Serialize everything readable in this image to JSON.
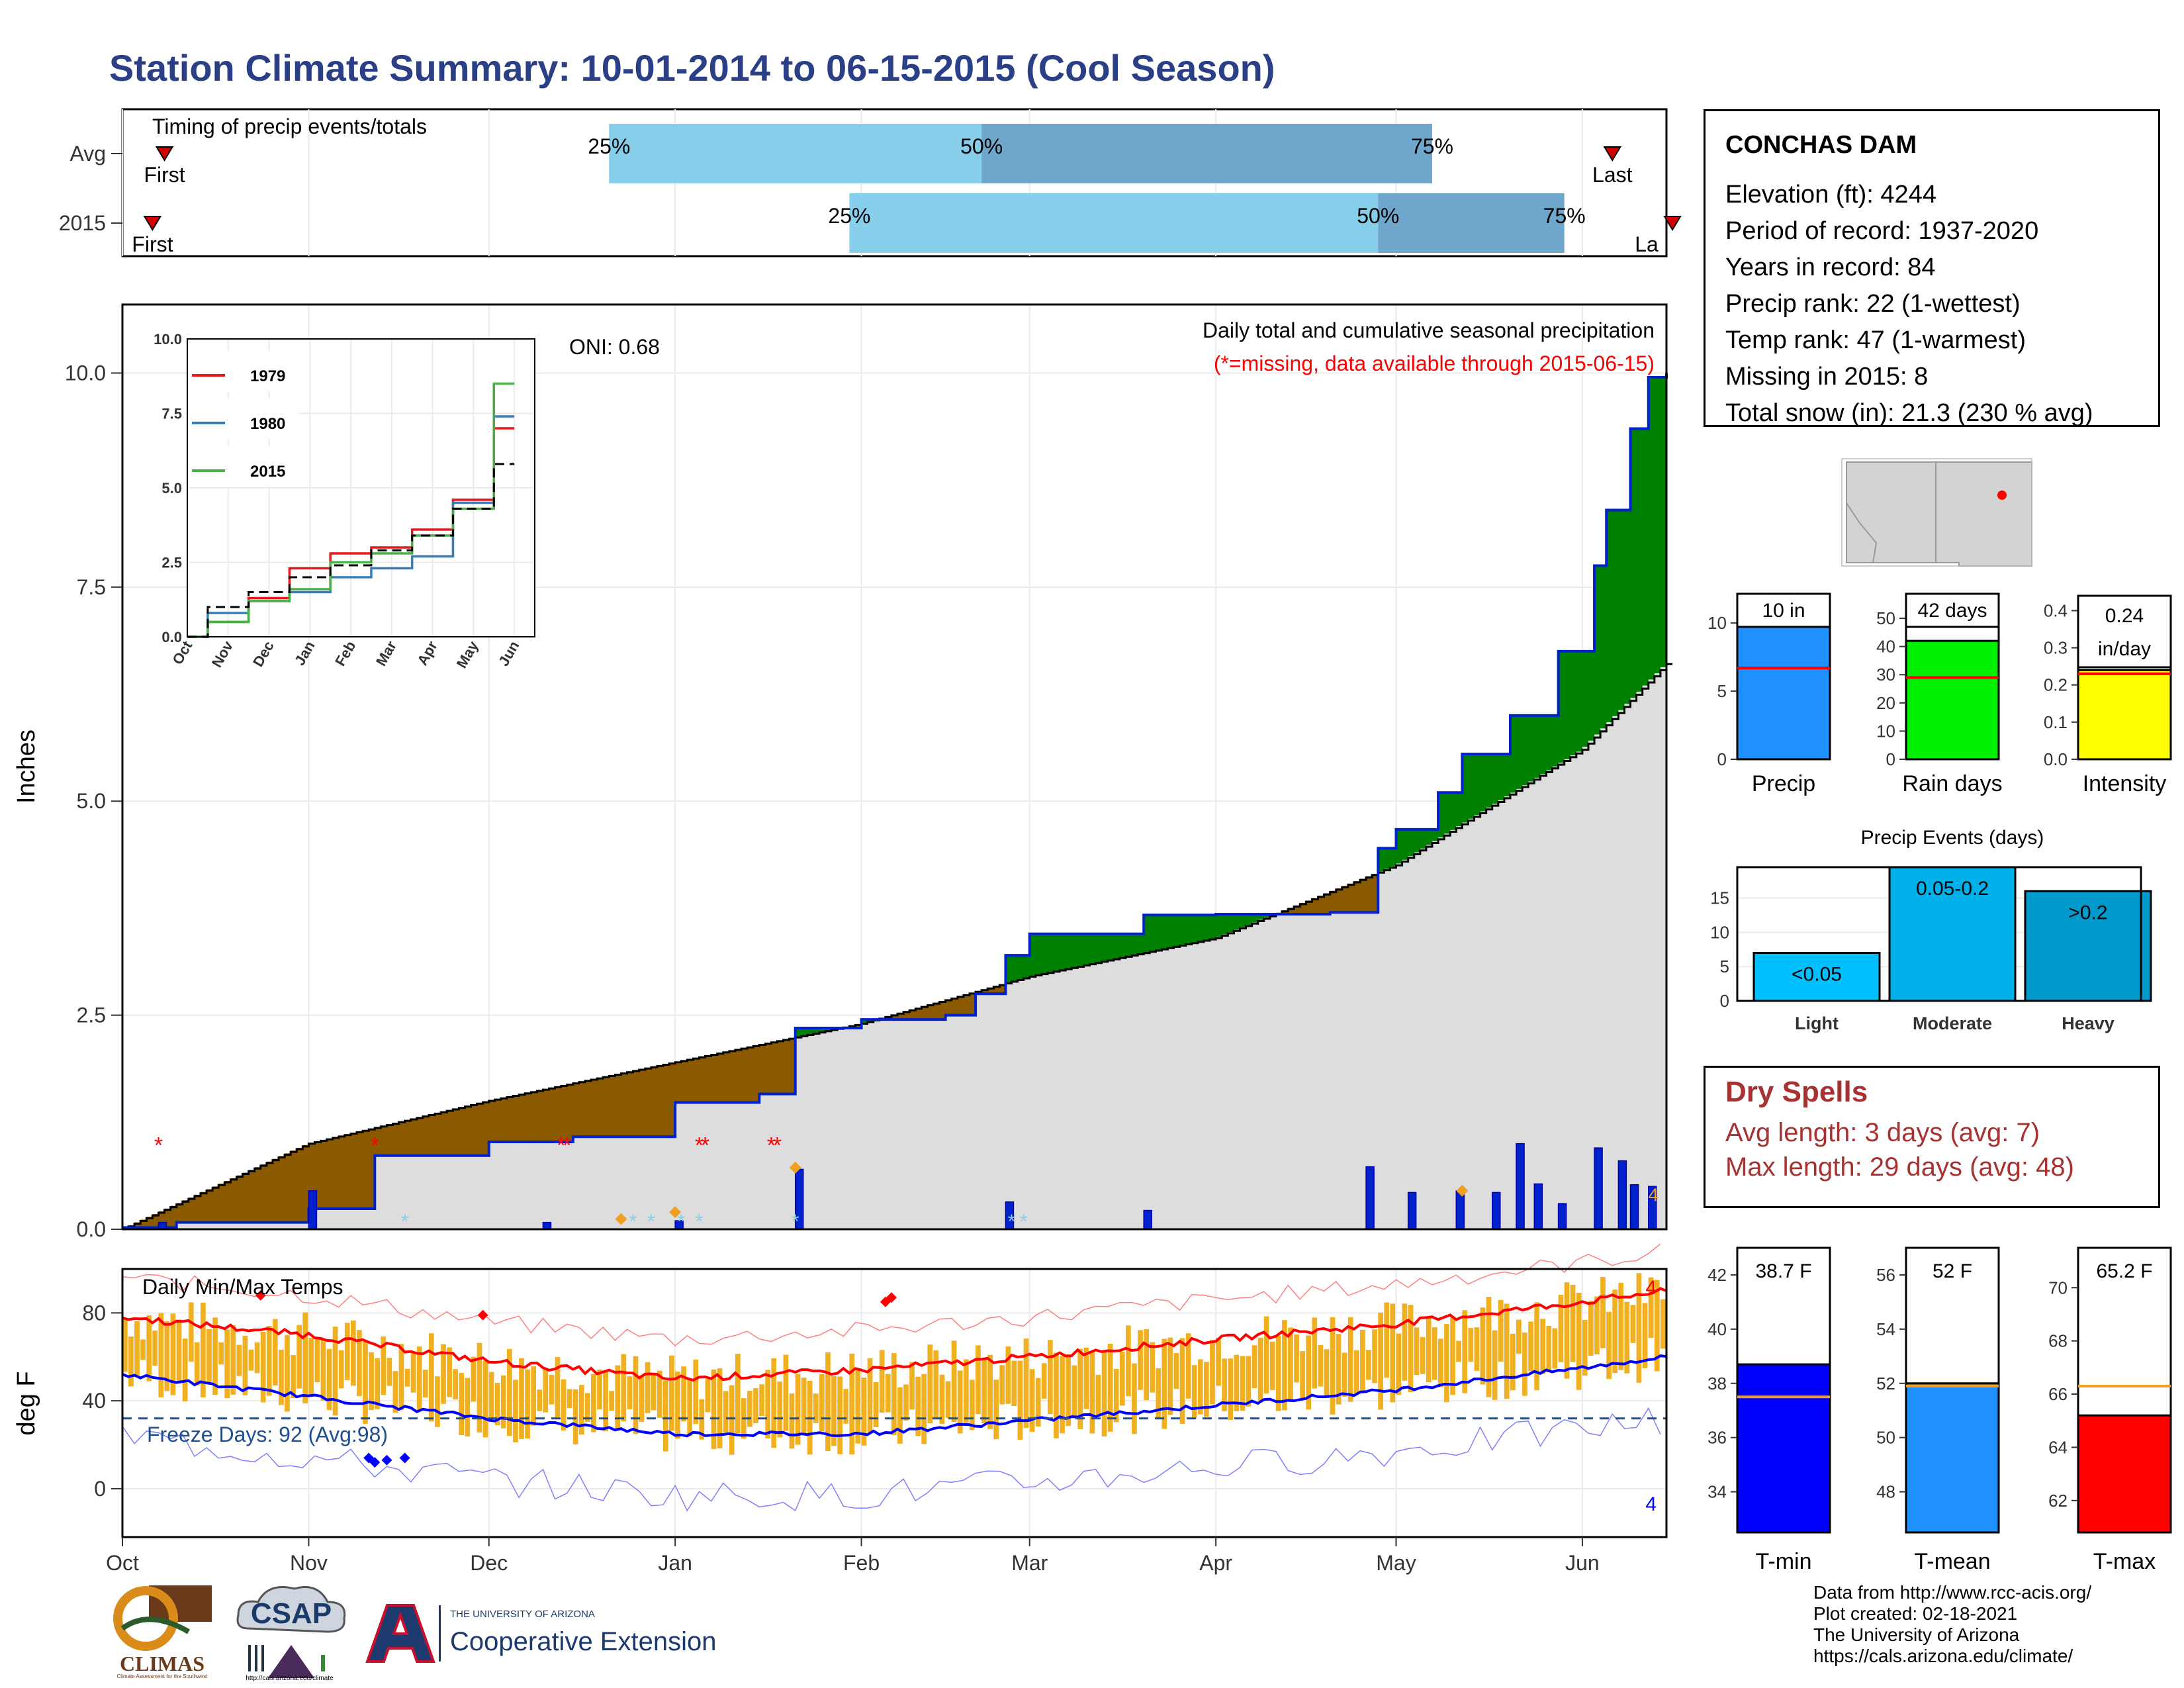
{
  "title": "Station Climate Summary: 10-01-2014 to 06-15-2015 (Cool Season)",
  "colors": {
    "title": "#2b3f87",
    "precip_2015": "#0022cc",
    "above_avg": "#008000",
    "below_avg": "#8b5a00",
    "avg_fill": "#dddddd",
    "tmax_line": "#ff0000",
    "tmin_line": "#0000ff",
    "range_bar": "#f0b020",
    "timing_light": "#87ceeb",
    "timing_dark": "#6ea6cc"
  },
  "timing": {
    "label": "Timing of precip events/totals",
    "rows": [
      {
        "name": "Avg",
        "first_label": "First",
        "last_label": "Last",
        "first": "2014-10-08",
        "q25": "2014-12-21",
        "q50": "2015-02-21",
        "q75": "2015-05-07",
        "last": "2015-06-06"
      },
      {
        "name": "2015",
        "first_label": "First",
        "last_label": "La",
        "first": "2014-10-06",
        "q25": "2015-01-30",
        "q50": "2015-04-28",
        "q75": "2015-05-29",
        "last": "2015-06-16"
      }
    ],
    "pct_labels": [
      "25%",
      "50%",
      "75%"
    ]
  },
  "precip_chart": {
    "ylabel": "Inches",
    "annotation_title": "Daily total and cumulative seasonal precipitation",
    "annotation_missing": "(*=missing, data available through 2015-06-15)",
    "oni": "ONI: 0.68",
    "y_ticks": [
      "0.0",
      "2.5",
      "5.0",
      "7.5",
      "10.0"
    ],
    "right_edge_count": "4",
    "inset": {
      "y_ticks": [
        "0.0",
        "2.5",
        "5.0",
        "7.5",
        "10.0"
      ],
      "x_ticks": [
        "Oct",
        "Nov",
        "Dec",
        "Jan",
        "Feb",
        "Mar",
        "Apr",
        "May",
        "Jun"
      ],
      "legend": [
        {
          "name": "1979",
          "color": "#e41a1c"
        },
        {
          "name": "1980",
          "color": "#377eb8"
        },
        {
          "name": "2015",
          "color": "#4daf4a"
        }
      ]
    }
  },
  "temp_chart": {
    "ylabel": "deg F",
    "label": "Daily Min/Max Temps",
    "freeze": "Freeze Days: 92 (Avg:98)",
    "y_ticks": [
      "0",
      "40",
      "80"
    ],
    "count_top": "4",
    "count_bottom": "4"
  },
  "x_axis": {
    "ticks": [
      "Oct",
      "Nov",
      "Dec",
      "Jan",
      "Feb",
      "Mar",
      "Apr",
      "May",
      "Jun"
    ]
  },
  "station": {
    "name": "CONCHAS DAM",
    "lines": [
      "Elevation (ft): 4244",
      "Period of record: 1937-2020",
      "Years in record: 84",
      "Precip rank: 22 (1-wettest)",
      "Temp rank: 47 (1-warmest)",
      "Missing in 2015: 8",
      "Total snow (in): 21.3 (230 % avg)"
    ]
  },
  "summary_bars": {
    "precip": {
      "label": "Precip",
      "value_label": "10 in",
      "ticks": [
        "0",
        "5",
        "10"
      ],
      "color": "#1e90ff"
    },
    "rain_days": {
      "label": "Rain days",
      "value_label": "42 days",
      "ticks": [
        "0",
        "10",
        "20",
        "30",
        "40",
        "50"
      ],
      "color": "#00ee00"
    },
    "intensity": {
      "label": "Intensity",
      "value_label_1": "0.24",
      "value_label_2": "in/day",
      "ticks": [
        "0.0",
        "0.1",
        "0.2",
        "0.3",
        "0.4"
      ],
      "color": "#ffff00"
    }
  },
  "precip_events": {
    "title": "Precip Events (days)",
    "ticks": [
      "0",
      "5",
      "10",
      "15"
    ],
    "bars": [
      {
        "name": "Light",
        "range": "<0.05",
        "value": 7,
        "color": "#00bfff"
      },
      {
        "name": "Moderate",
        "range": "0.05-0.2",
        "value": 19.5,
        "color": "#00b0e8"
      },
      {
        "name": "Heavy",
        "range": ">0.2",
        "value": 16,
        "color": "#009acd"
      }
    ]
  },
  "dry_spells": {
    "title": "Dry Spells",
    "avg": "Avg length: 3 days (avg: 7)",
    "max": "Max length: 29 days (avg: 48)"
  },
  "temp_bars": [
    {
      "name": "T-min",
      "value_label": "38.7 F",
      "ticks": [
        "34",
        "36",
        "38",
        "40",
        "42"
      ],
      "color": "#0000ff"
    },
    {
      "name": "T-mean",
      "value_label": "52 F",
      "ticks": [
        "48",
        "50",
        "52",
        "54",
        "56"
      ],
      "color": "#1e90ff"
    },
    {
      "name": "T-max",
      "value_label": "65.2 F",
      "ticks": [
        "62",
        "64",
        "66",
        "68",
        "70"
      ],
      "color": "#ff0000"
    }
  ],
  "credits": [
    "Data from http://www.rcc-acis.org/",
    "Plot created: 02-18-2021",
    "The University of Arizona",
    "https://cals.arizona.edu/climate/"
  ],
  "logos": {
    "climas": "CLIMAS",
    "climas_sub": "Climate Assessment for the Southwest",
    "csap": "CSAP",
    "csap_url": "http://cals.arizona.edu/climate",
    "ua_top": "THE UNIVERSITY OF ARIZONA",
    "ua_bottom": "Cooperative Extension"
  },
  "chart_data": [
    {
      "type": "area",
      "title": "Daily total and cumulative seasonal precipitation",
      "ylabel": "Inches",
      "ylim": [
        0,
        10.8
      ],
      "x_range": [
        "2014-10-01",
        "2015-06-15"
      ],
      "series": [
        {
          "name": "2015",
          "x": [
            "2014-10-01",
            "2014-10-10",
            "2014-11-01",
            "2014-11-12",
            "2014-12-01",
            "2014-12-15",
            "2015-01-01",
            "2015-01-15",
            "2015-01-21",
            "2015-02-01",
            "2015-02-15",
            "2015-02-20",
            "2015-02-25",
            "2015-03-01",
            "2015-03-20",
            "2015-04-01",
            "2015-04-20",
            "2015-04-28",
            "2015-05-01",
            "2015-05-08",
            "2015-05-12",
            "2015-05-20",
            "2015-05-28",
            "2015-06-03",
            "2015-06-05",
            "2015-06-09",
            "2015-06-12",
            "2015-06-15"
          ],
          "y": [
            0.02,
            0.08,
            0.24,
            0.86,
            1.02,
            1.08,
            1.48,
            1.58,
            2.35,
            2.45,
            2.5,
            2.75,
            3.2,
            3.45,
            3.67,
            3.68,
            3.7,
            4.45,
            4.67,
            5.1,
            5.55,
            6.0,
            6.75,
            7.75,
            8.4,
            9.35,
            9.95,
            10.0
          ]
        },
        {
          "name": "Average",
          "x": [
            "2014-10-01",
            "2014-11-01",
            "2014-12-01",
            "2015-01-01",
            "2015-02-01",
            "2015-03-01",
            "2015-04-01",
            "2015-05-01",
            "2015-06-01",
            "2015-06-15"
          ],
          "y": [
            0.0,
            1.0,
            1.5,
            1.95,
            2.4,
            2.95,
            3.4,
            4.25,
            5.6,
            6.6
          ]
        }
      ],
      "daily_precip_2015": {
        "x": [
          "2014-10-07",
          "2014-11-01",
          "2014-12-10",
          "2015-01-01",
          "2015-01-21",
          "2015-02-25",
          "2015-03-20",
          "2015-04-26",
          "2015-05-03",
          "2015-05-11",
          "2015-05-17",
          "2015-05-21",
          "2015-05-24",
          "2015-05-28",
          "2015-06-03",
          "2015-06-07",
          "2015-06-09",
          "2015-06-12"
        ],
        "y": [
          0.08,
          0.45,
          0.08,
          0.1,
          0.7,
          0.32,
          0.22,
          0.73,
          0.43,
          0.45,
          0.43,
          1.0,
          0.53,
          0.3,
          0.95,
          0.8,
          0.52,
          0.5
        ]
      }
    },
    {
      "type": "line",
      "title": "Daily Min/Max Temps",
      "ylabel": "deg F",
      "ylim": [
        -22,
        100
      ],
      "series": [
        {
          "name": "Avg Tmax",
          "x": [
            "2014-10-01",
            "2014-11-01",
            "2014-12-01",
            "2015-01-01",
            "2015-02-01",
            "2015-03-01",
            "2015-04-01",
            "2015-05-01",
            "2015-06-01",
            "2015-06-15"
          ],
          "y": [
            78,
            70,
            58,
            50,
            54,
            60,
            68,
            75,
            85,
            90
          ]
        },
        {
          "name": "Avg Tmin",
          "x": [
            "2014-10-01",
            "2014-11-01",
            "2014-12-01",
            "2015-01-01",
            "2015-02-01",
            "2015-03-01",
            "2015-04-01",
            "2015-05-01",
            "2015-06-01",
            "2015-06-15"
          ],
          "y": [
            52,
            42,
            32,
            25,
            25,
            31,
            38,
            45,
            55,
            60
          ]
        },
        {
          "name": "Freeze line",
          "x": [
            "2014-10-01",
            "2015-06-15"
          ],
          "y": [
            32,
            32
          ]
        }
      ]
    },
    {
      "type": "line",
      "title": "",
      "x_ticks": [
        "Oct",
        "Nov",
        "Dec",
        "Jan",
        "Feb",
        "Mar",
        "Apr",
        "May",
        "Jun"
      ],
      "ylim": [
        0,
        10
      ],
      "series": [
        {
          "name": "1979",
          "x": [
            "Oct",
            "Nov",
            "Dec",
            "Jan",
            "Feb",
            "Mar",
            "Apr",
            "May",
            "Jun"
          ],
          "y": [
            0.0,
            0.5,
            1.3,
            2.3,
            2.8,
            3.0,
            3.6,
            4.6,
            7.0
          ]
        },
        {
          "name": "1980",
          "x": [
            "Oct",
            "Nov",
            "Dec",
            "Jan",
            "Feb",
            "Mar",
            "Apr",
            "May",
            "Jun"
          ],
          "y": [
            0.0,
            0.8,
            1.2,
            1.5,
            2.0,
            2.3,
            2.7,
            4.5,
            7.4
          ]
        },
        {
          "name": "2015",
          "x": [
            "Oct",
            "Nov",
            "Dec",
            "Jan",
            "Feb",
            "Mar",
            "Apr",
            "May",
            "Jun"
          ],
          "y": [
            0.0,
            0.5,
            1.2,
            1.6,
            2.5,
            2.8,
            3.4,
            4.3,
            8.5
          ]
        },
        {
          "name": "Average",
          "x": [
            "Oct",
            "Nov",
            "Dec",
            "Jan",
            "Feb",
            "Mar",
            "Apr",
            "May",
            "Jun"
          ],
          "y": [
            0.0,
            1.0,
            1.5,
            2.0,
            2.4,
            2.9,
            3.4,
            4.3,
            5.8
          ]
        }
      ]
    },
    {
      "type": "bar",
      "title": "",
      "categories": [
        "Precip",
        "Rain days",
        "Intensity"
      ],
      "series": [
        {
          "name": "",
          "values": [
            10,
            42,
            0.24
          ]
        },
        {
          "name": "",
          "values": [
            6.7,
            29,
            0.23
          ]
        }
      ]
    },
    {
      "type": "bar",
      "title": "Precip Events (days)",
      "categories": [
        "Light",
        "Moderate",
        "Heavy"
      ],
      "values": [
        7,
        19.5,
        16
      ],
      "ylim": [
        0,
        19.5
      ]
    },
    {
      "type": "bar",
      "title": "",
      "categories": [
        "T-min",
        "T-mean",
        "T-max"
      ],
      "series": [
        {
          "name": "",
          "values": [
            38.7,
            52,
            65.2
          ]
        },
        {
          "name": "",
          "values": [
            37.5,
            51.9,
            66.3
          ]
        }
      ]
    }
  ]
}
